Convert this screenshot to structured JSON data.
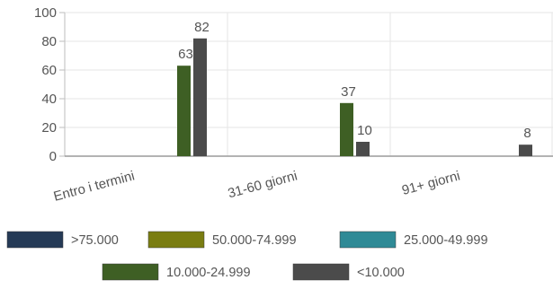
{
  "chart_data": {
    "type": "bar",
    "title": "",
    "xlabel": "",
    "ylabel": "",
    "categories": [
      "Entro i termini",
      "31-60 giorni",
      "91+ giorni"
    ],
    "series": [
      {
        "name": ">75.000",
        "color": "#253a56",
        "values": [
          0,
          0,
          0
        ]
      },
      {
        "name": "50.000-74.999",
        "color": "#7a7d12",
        "values": [
          0,
          0,
          0
        ]
      },
      {
        "name": "25.000-49.999",
        "color": "#2f8a96",
        "values": [
          0,
          0,
          0
        ]
      },
      {
        "name": "10.000-24.999",
        "color": "#3e5f24",
        "values": [
          63,
          37,
          0
        ]
      },
      {
        "name": "<10.000",
        "color": "#4b4b4b",
        "values": [
          82,
          10,
          8
        ]
      }
    ],
    "ylim": [
      0,
      100
    ],
    "yticks": [
      0,
      20,
      40,
      60,
      80,
      100
    ],
    "grid": true,
    "legend": "bottom"
  }
}
